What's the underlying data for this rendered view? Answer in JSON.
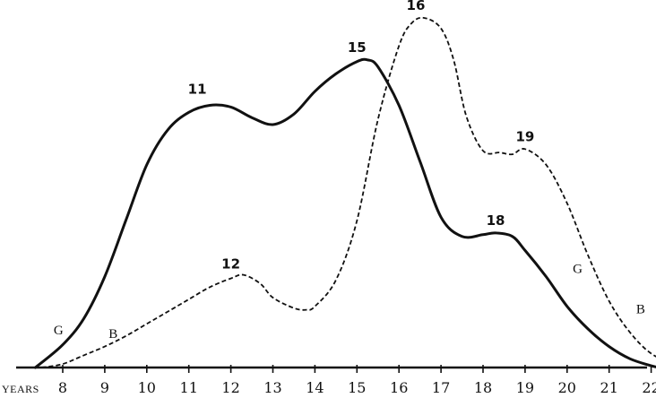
{
  "chart_data": {
    "type": "line",
    "xlabel": "YEARS",
    "xlim": [
      7.2,
      22.8
    ],
    "ylim": [
      0,
      100
    ],
    "x_ticks": [
      "8",
      "9",
      "10",
      "11",
      "12",
      "13",
      "14",
      "15",
      "16",
      "17",
      "18",
      "19",
      "20",
      "21",
      "22"
    ],
    "series": [
      {
        "name": "G",
        "style": "solid",
        "x": [
          7.35,
          8.0,
          8.5,
          9.0,
          9.5,
          10.0,
          10.5,
          11.0,
          11.5,
          12.0,
          12.5,
          13.0,
          13.5,
          14.0,
          14.5,
          15.0,
          15.25,
          15.5,
          16.0,
          16.5,
          17.0,
          17.5,
          18.0,
          18.3,
          18.7,
          19.0,
          19.5,
          20.0,
          20.5,
          21.0,
          21.5,
          22.0,
          22.2
        ],
        "y": [
          0,
          6.5,
          14,
          26,
          42,
          58,
          68,
          73,
          75,
          74.5,
          71.5,
          69.5,
          72.5,
          79,
          84,
          87.5,
          88,
          86,
          75,
          59,
          43,
          37.5,
          38,
          38.5,
          37.5,
          33.5,
          26,
          17.5,
          11,
          6,
          2.5,
          0.5,
          0
        ]
      },
      {
        "name": "B",
        "style": "dashed",
        "x": [
          7.5,
          8.0,
          8.5,
          9.0,
          9.5,
          10.0,
          10.5,
          11.0,
          11.5,
          12.0,
          12.3,
          12.7,
          13.0,
          13.5,
          13.8,
          14.0,
          14.5,
          15.0,
          15.5,
          16.0,
          16.3,
          16.6,
          17.0,
          17.3,
          17.6,
          18.0,
          18.4,
          18.7,
          19.0,
          19.5,
          20.0,
          20.5,
          21.0,
          21.5,
          22.0,
          22.5,
          22.8
        ],
        "y": [
          0,
          1,
          3.5,
          6,
          9,
          12.5,
          16,
          19.5,
          23,
          25.5,
          26.5,
          24,
          20,
          17,
          16.5,
          17.5,
          25,
          42,
          71,
          92,
          98.5,
          100,
          97,
          88,
          72,
          62,
          61.5,
          61,
          62.5,
          58,
          47,
          32,
          19,
          10,
          4,
          1.5,
          2
        ]
      }
    ],
    "annotations": [
      {
        "text": "11",
        "x": 11.2,
        "y": 76,
        "series": "G"
      },
      {
        "text": "15",
        "x": 15.0,
        "y": 88,
        "series": "G"
      },
      {
        "text": "18",
        "x": 18.3,
        "y": 38.5,
        "series": "G"
      },
      {
        "text": "12",
        "x": 12.0,
        "y": 26,
        "series": "B"
      },
      {
        "text": "16",
        "x": 16.4,
        "y": 100,
        "series": "B"
      },
      {
        "text": "19",
        "x": 19.0,
        "y": 62.5,
        "series": "B"
      }
    ],
    "series_labels": [
      {
        "text": "G",
        "x": 7.9,
        "y": 9.5
      },
      {
        "text": "B",
        "x": 9.2,
        "y": 8.5
      },
      {
        "text": "G",
        "x": 20.25,
        "y": 27
      },
      {
        "text": "B",
        "x": 21.75,
        "y": 15.5
      }
    ],
    "grid": false,
    "legend": "none"
  }
}
